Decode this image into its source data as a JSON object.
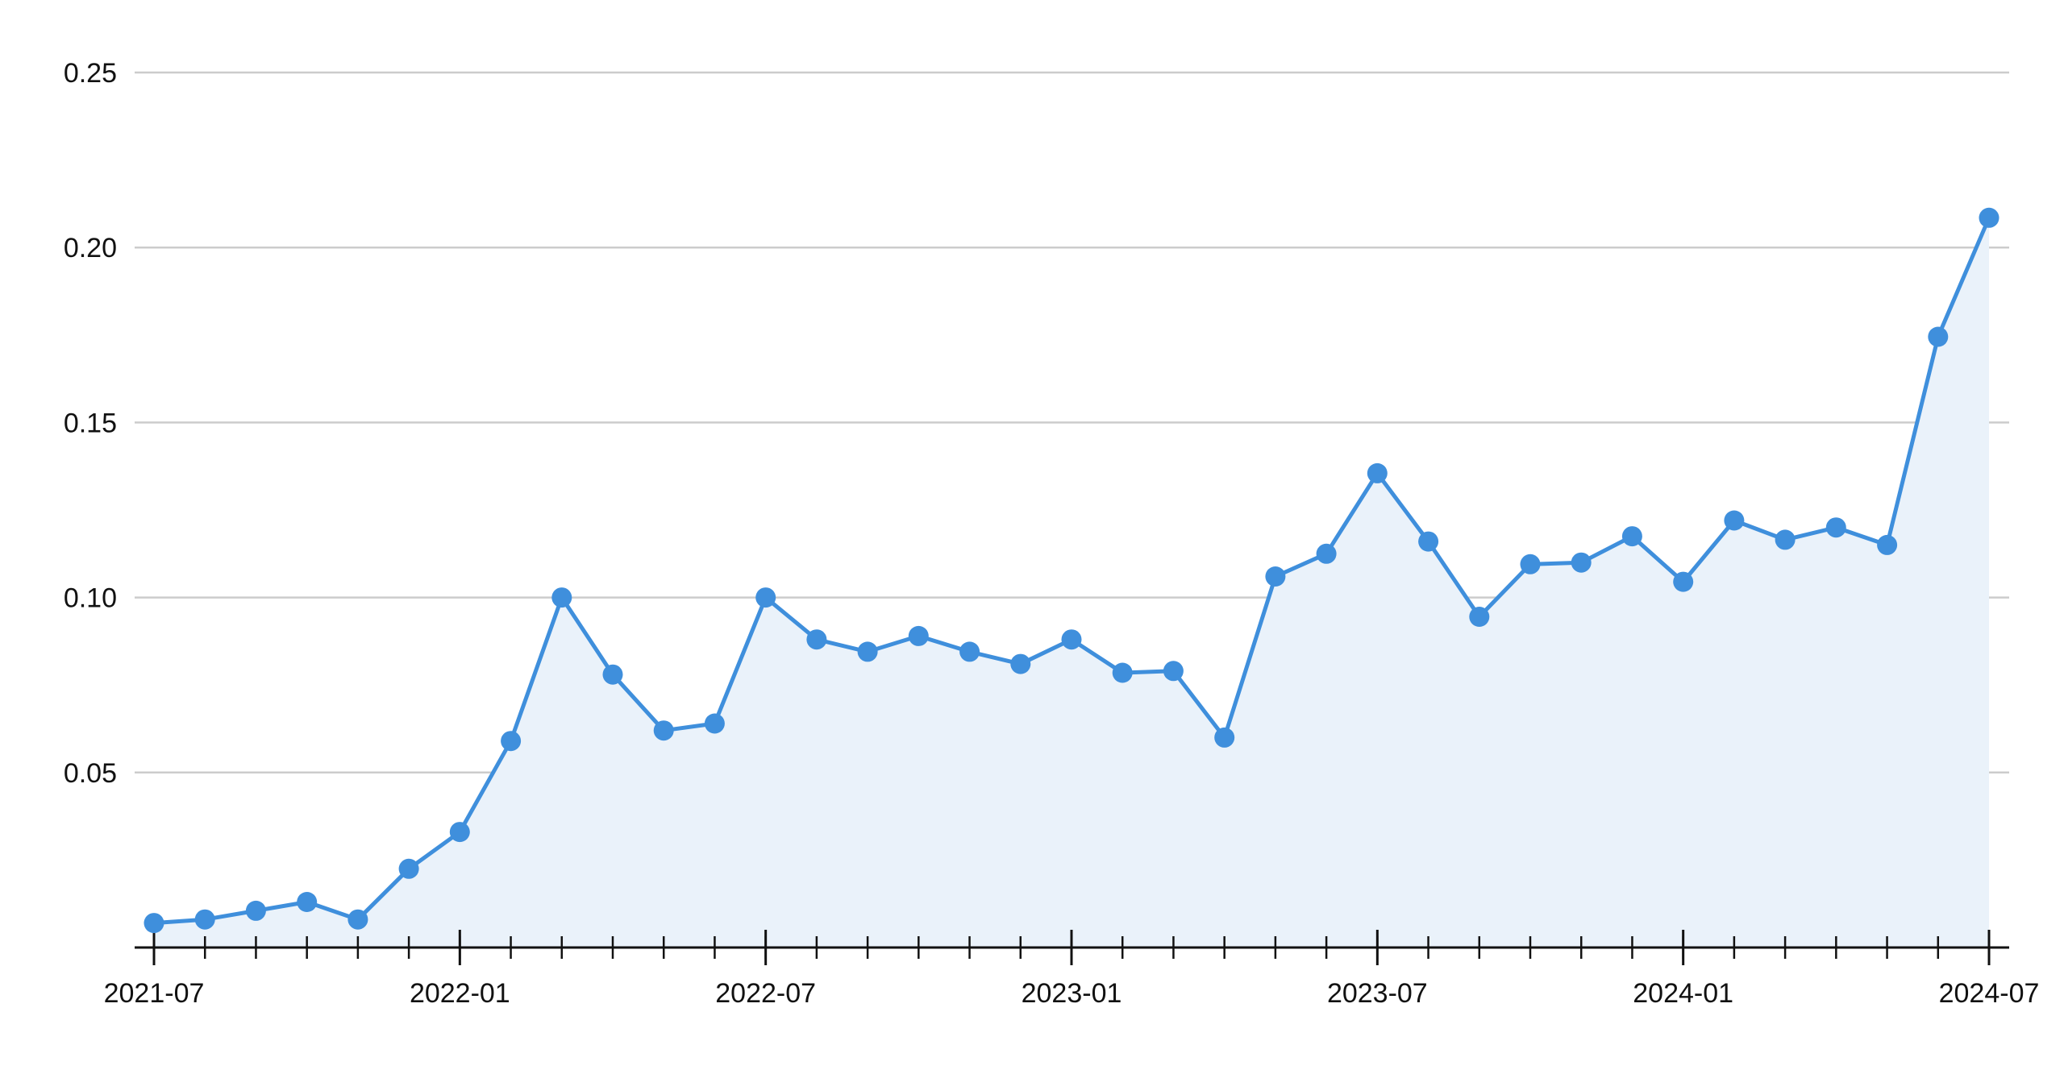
{
  "colors": {
    "line": "#3f8fdc",
    "point": "#3f8fdc",
    "area": "#eaf2fa",
    "grid": "#cccccc",
    "axis": "#111111",
    "text": "#111111",
    "background": "#ffffff"
  },
  "chart_data": {
    "type": "area",
    "title": "",
    "xlabel": "",
    "ylabel": "",
    "grid": true,
    "legend": "none",
    "ylim": [
      0,
      0.25
    ],
    "yticks": [
      {
        "value": 0.05,
        "label": "0.05"
      },
      {
        "value": 0.1,
        "label": "0.10"
      },
      {
        "value": 0.15,
        "label": "0.15"
      },
      {
        "value": 0.2,
        "label": "0.20"
      },
      {
        "value": 0.25,
        "label": "0.25"
      }
    ],
    "xlim": [
      "2021-07",
      "2024-07"
    ],
    "xticks": [
      {
        "value": "2021-07",
        "label": "2021-07"
      },
      {
        "value": "2022-01",
        "label": "2022-01"
      },
      {
        "value": "2022-07",
        "label": "2022-07"
      },
      {
        "value": "2023-01",
        "label": "2023-01"
      },
      {
        "value": "2023-07",
        "label": "2023-07"
      },
      {
        "value": "2024-01",
        "label": "2024-01"
      },
      {
        "value": "2024-07",
        "label": "2024-07"
      }
    ],
    "minor_ticks": "monthly",
    "x": [
      "2021-07",
      "2021-08",
      "2021-09",
      "2021-10",
      "2021-11",
      "2021-12",
      "2022-01",
      "2022-02",
      "2022-03",
      "2022-04",
      "2022-05",
      "2022-06",
      "2022-07",
      "2022-08",
      "2022-09",
      "2022-10",
      "2022-11",
      "2022-12",
      "2023-01",
      "2023-02",
      "2023-03",
      "2023-04",
      "2023-05",
      "2023-06",
      "2023-07",
      "2023-08",
      "2023-09",
      "2023-10",
      "2023-11",
      "2023-12",
      "2024-01",
      "2024-02",
      "2024-03",
      "2024-04",
      "2024-05",
      "2024-06",
      "2024-07"
    ],
    "series": [
      {
        "values": [
          0.007,
          0.008,
          0.0105,
          0.013,
          0.008,
          0.0225,
          0.033,
          0.059,
          0.1,
          0.078,
          0.062,
          0.064,
          0.1,
          0.088,
          0.0845,
          0.089,
          0.0845,
          0.081,
          0.088,
          0.0785,
          0.079,
          0.06,
          0.106,
          0.1125,
          0.1355,
          0.116,
          0.0945,
          0.1095,
          0.11,
          0.1175,
          0.1045,
          0.122,
          0.1165,
          0.12,
          0.115,
          0.1745,
          0.2085
        ]
      }
    ]
  }
}
